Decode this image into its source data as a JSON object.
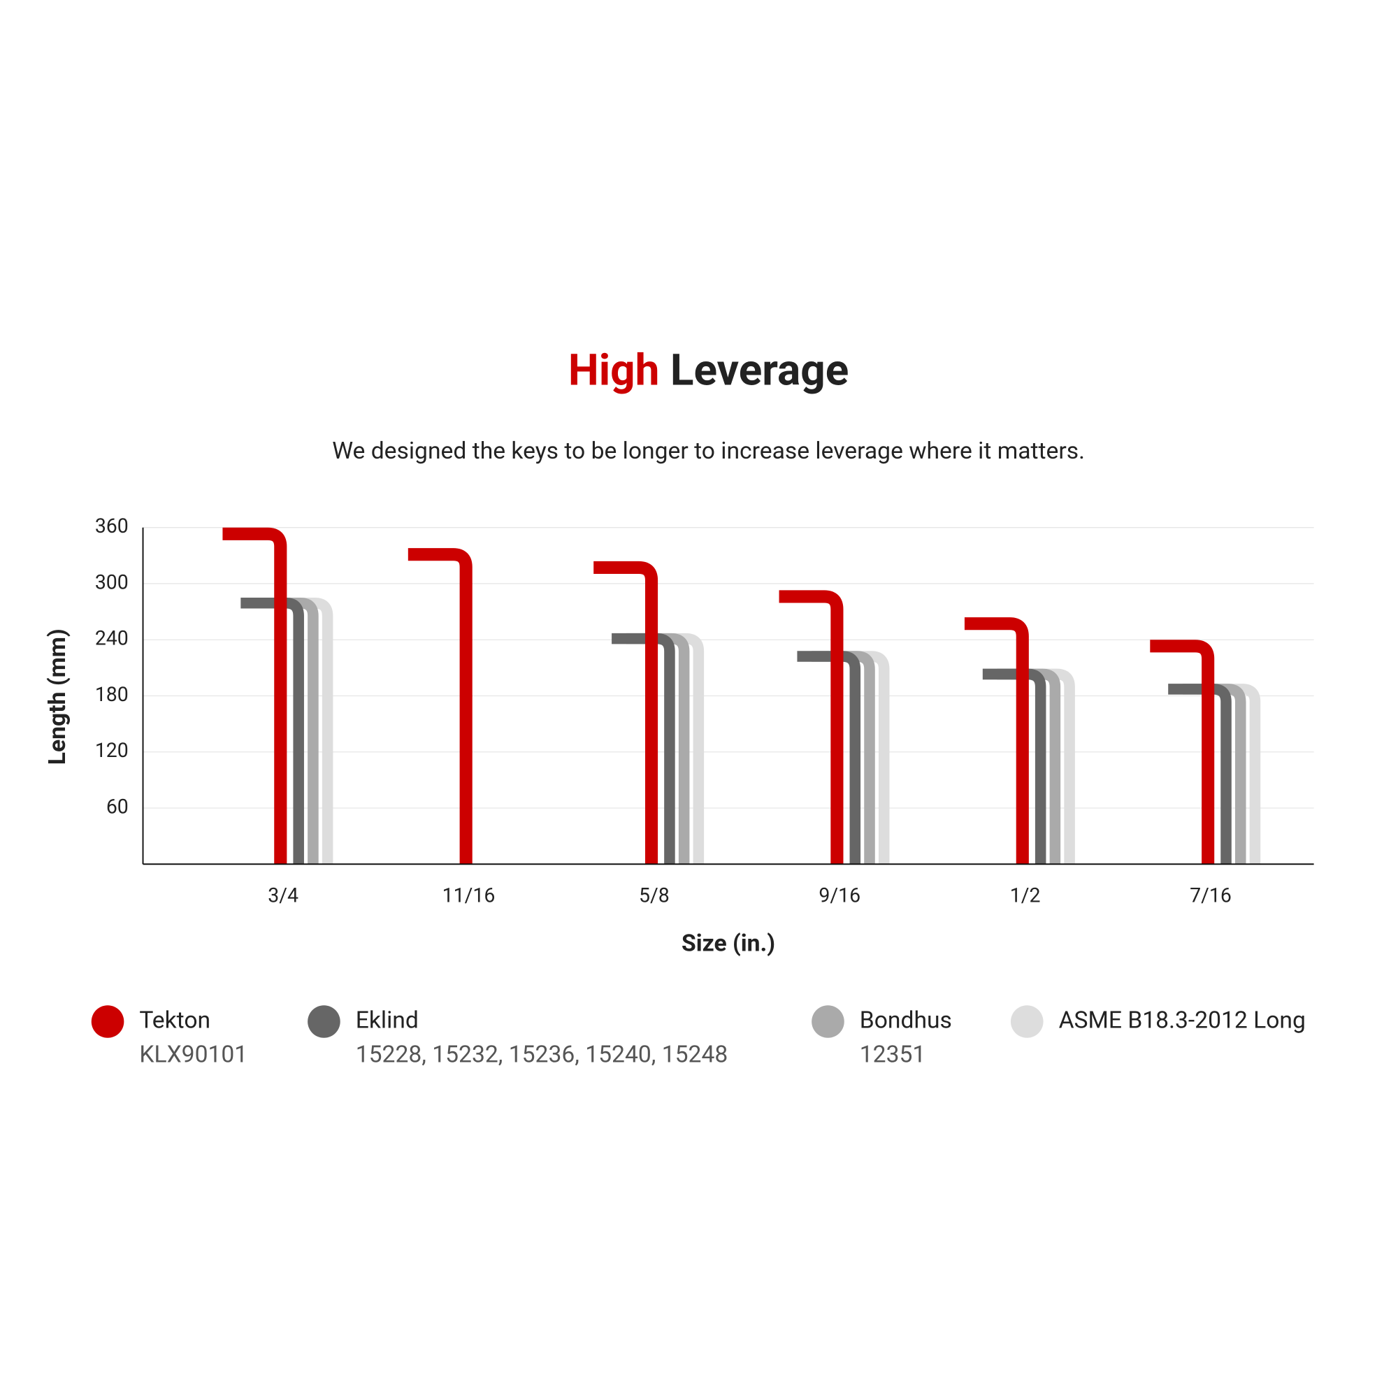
{
  "chart_data": {
    "type": "hexkey",
    "title": {
      "highlight": "High",
      "rest": "Leverage"
    },
    "subtitle": "We designed the keys to be longer to increase leverage where it matters.",
    "x_label": "Size (in.)",
    "y_label": "Length (mm)",
    "categories": [
      "3/4",
      "11/16",
      "5/8",
      "9/16",
      "1/2",
      "7/16"
    ],
    "series": [
      {
        "name": "Tekton",
        "model": "KLX90101",
        "color": "#cc0000",
        "values": [
          360,
          338,
          324,
          293,
          264,
          240
        ]
      },
      {
        "name": "Eklind",
        "model": "15228, 15232, 15236, 15240, 15248",
        "color": "#666666",
        "values": [
          285,
          null,
          247,
          228,
          209,
          193
        ]
      },
      {
        "name": "Bondhus",
        "model": "12351",
        "color": "#aaaaaa",
        "values": [
          285,
          null,
          247,
          228,
          209,
          193
        ]
      },
      {
        "name": "ASME B18.3-2012 Long",
        "color": "#dddddd",
        "values": [
          285,
          null,
          247,
          228,
          209,
          193
        ]
      }
    ],
    "ylim": [
      0,
      360
    ],
    "yticks": [
      60,
      120,
      180,
      240,
      300,
      360
    ],
    "grid": true
  }
}
